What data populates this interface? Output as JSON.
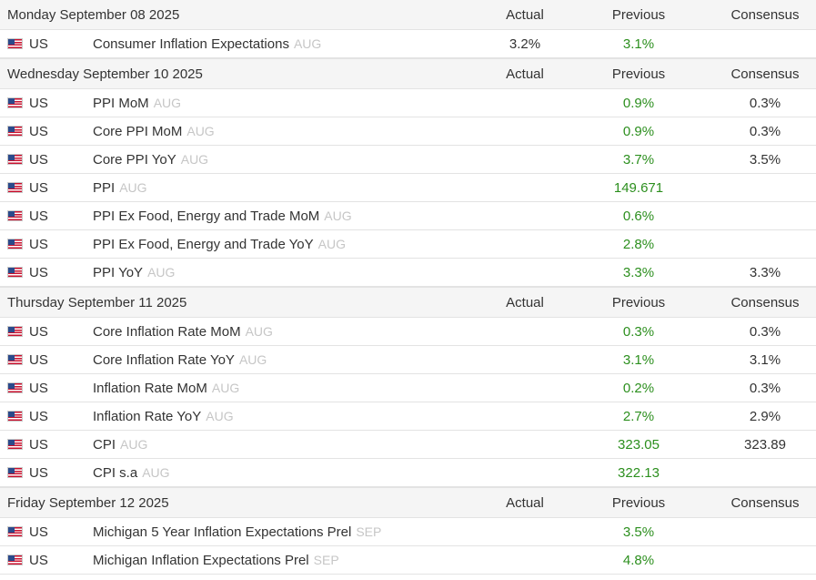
{
  "columns": {
    "actual": "Actual",
    "previous": "Previous",
    "consensus": "Consensus"
  },
  "icons": {
    "flag": "us-flag-icon"
  },
  "colors": {
    "previous_text": "#2c8f1e",
    "period_text": "#c6c6c6",
    "header_bg": "#f5f5f5"
  },
  "days": [
    {
      "date": "Monday September 08 2025",
      "events": [
        {
          "country": "US",
          "name": "Consumer Inflation Expectations",
          "period": "AUG",
          "actual": "3.2%",
          "previous": "3.1%",
          "consensus": ""
        }
      ]
    },
    {
      "date": "Wednesday September 10 2025",
      "events": [
        {
          "country": "US",
          "name": "PPI MoM",
          "period": "AUG",
          "actual": "",
          "previous": "0.9%",
          "consensus": "0.3%"
        },
        {
          "country": "US",
          "name": "Core PPI MoM",
          "period": "AUG",
          "actual": "",
          "previous": "0.9%",
          "consensus": "0.3%"
        },
        {
          "country": "US",
          "name": "Core PPI YoY",
          "period": "AUG",
          "actual": "",
          "previous": "3.7%",
          "consensus": "3.5%"
        },
        {
          "country": "US",
          "name": "PPI",
          "period": "AUG",
          "actual": "",
          "previous": "149.671",
          "consensus": ""
        },
        {
          "country": "US",
          "name": "PPI Ex Food, Energy and Trade MoM",
          "period": "AUG",
          "actual": "",
          "previous": "0.6%",
          "consensus": ""
        },
        {
          "country": "US",
          "name": "PPI Ex Food, Energy and Trade YoY",
          "period": "AUG",
          "actual": "",
          "previous": "2.8%",
          "consensus": ""
        },
        {
          "country": "US",
          "name": "PPI YoY",
          "period": "AUG",
          "actual": "",
          "previous": "3.3%",
          "consensus": "3.3%"
        }
      ]
    },
    {
      "date": "Thursday September 11 2025",
      "events": [
        {
          "country": "US",
          "name": "Core Inflation Rate MoM",
          "period": "AUG",
          "actual": "",
          "previous": "0.3%",
          "consensus": "0.3%"
        },
        {
          "country": "US",
          "name": "Core Inflation Rate YoY",
          "period": "AUG",
          "actual": "",
          "previous": "3.1%",
          "consensus": "3.1%"
        },
        {
          "country": "US",
          "name": "Inflation Rate MoM",
          "period": "AUG",
          "actual": "",
          "previous": "0.2%",
          "consensus": "0.3%"
        },
        {
          "country": "US",
          "name": "Inflation Rate YoY",
          "period": "AUG",
          "actual": "",
          "previous": "2.7%",
          "consensus": "2.9%"
        },
        {
          "country": "US",
          "name": "CPI",
          "period": "AUG",
          "actual": "",
          "previous": "323.05",
          "consensus": "323.89"
        },
        {
          "country": "US",
          "name": "CPI s.a",
          "period": "AUG",
          "actual": "",
          "previous": "322.13",
          "consensus": ""
        }
      ]
    },
    {
      "date": "Friday September 12 2025",
      "events": [
        {
          "country": "US",
          "name": "Michigan 5 Year Inflation Expectations Prel",
          "period": "SEP",
          "actual": "",
          "previous": "3.5%",
          "consensus": ""
        },
        {
          "country": "US",
          "name": "Michigan Inflation Expectations Prel",
          "period": "SEP",
          "actual": "",
          "previous": "4.8%",
          "consensus": ""
        }
      ]
    }
  ]
}
